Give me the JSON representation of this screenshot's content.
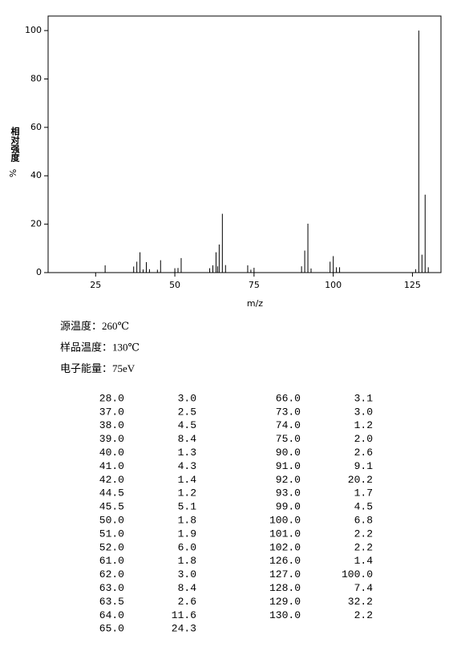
{
  "chart_data": {
    "type": "bar",
    "x_label": "m/z",
    "y_label": "相对强度",
    "y_label_unit": "%",
    "x": [
      28.0,
      37.0,
      38.0,
      39.0,
      40.0,
      41.0,
      42.0,
      44.5,
      45.5,
      50.0,
      51.0,
      52.0,
      61.0,
      62.0,
      63.0,
      63.5,
      64.0,
      65.0,
      66.0,
      73.0,
      74.0,
      75.0,
      90.0,
      91.0,
      92.0,
      93.0,
      99.0,
      100.0,
      101.0,
      102.0,
      126.0,
      127.0,
      128.0,
      129.0,
      130.0
    ],
    "values": [
      3.0,
      2.5,
      4.5,
      8.4,
      1.3,
      4.3,
      1.4,
      1.2,
      5.1,
      1.8,
      1.9,
      6.0,
      1.8,
      3.0,
      8.4,
      2.6,
      11.6,
      24.3,
      3.1,
      3.0,
      1.2,
      2.0,
      2.6,
      9.1,
      20.2,
      1.7,
      4.5,
      6.8,
      2.2,
      2.2,
      1.4,
      100.0,
      7.4,
      32.2,
      2.2
    ],
    "color": "#000000",
    "xlim": [
      10,
      134
    ],
    "xticks": [
      25,
      50,
      75,
      100,
      125
    ],
    "ylim": [
      0,
      106
    ],
    "yticks": [
      0,
      20,
      40,
      60,
      80,
      100
    ]
  },
  "info": [
    "源温度：260℃",
    "样品温度：130℃",
    "电子能量：75eV"
  ],
  "table": {
    "left": [
      [
        "28.0",
        "3.0"
      ],
      [
        "37.0",
        "2.5"
      ],
      [
        "38.0",
        "4.5"
      ],
      [
        "39.0",
        "8.4"
      ],
      [
        "40.0",
        "1.3"
      ],
      [
        "41.0",
        "4.3"
      ],
      [
        "42.0",
        "1.4"
      ],
      [
        "44.5",
        "1.2"
      ],
      [
        "45.5",
        "5.1"
      ],
      [
        "50.0",
        "1.8"
      ],
      [
        "51.0",
        "1.9"
      ],
      [
        "52.0",
        "6.0"
      ],
      [
        "61.0",
        "1.8"
      ],
      [
        "62.0",
        "3.0"
      ],
      [
        "63.0",
        "8.4"
      ],
      [
        "63.5",
        "2.6"
      ],
      [
        "64.0",
        "11.6"
      ],
      [
        "65.0",
        "24.3"
      ]
    ],
    "right": [
      [
        "66.0",
        "3.1"
      ],
      [
        "73.0",
        "3.0"
      ],
      [
        "74.0",
        "1.2"
      ],
      [
        "75.0",
        "2.0"
      ],
      [
        "90.0",
        "2.6"
      ],
      [
        "91.0",
        "9.1"
      ],
      [
        "92.0",
        "20.2"
      ],
      [
        "93.0",
        "1.7"
      ],
      [
        "99.0",
        "4.5"
      ],
      [
        "100.0",
        "6.8"
      ],
      [
        "101.0",
        "2.2"
      ],
      [
        "102.0",
        "2.2"
      ],
      [
        "126.0",
        "1.4"
      ],
      [
        "127.0",
        "100.0"
      ],
      [
        "128.0",
        "7.4"
      ],
      [
        "129.0",
        "32.2"
      ],
      [
        "130.0",
        "2.2"
      ]
    ]
  }
}
